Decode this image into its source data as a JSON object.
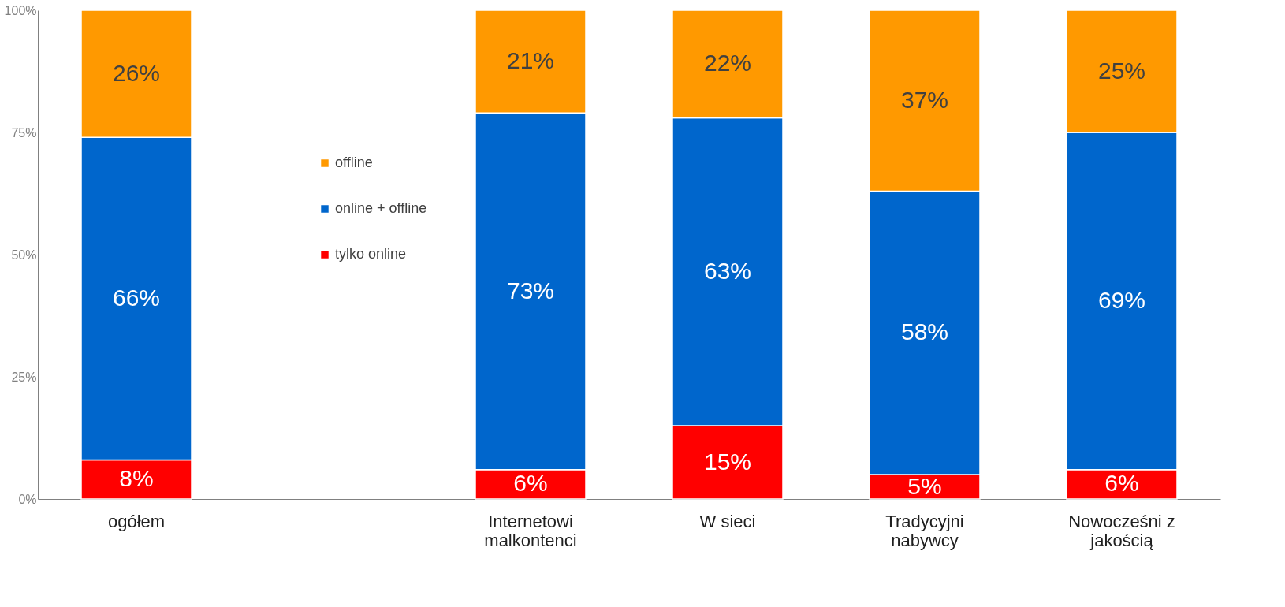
{
  "chart_data": {
    "type": "bar",
    "stacked": true,
    "categories": [
      "ogółem",
      null,
      "Internetowi malkontenci",
      "W sieci",
      "Tradycyjni nabywcy",
      "Nowocześni z jakością"
    ],
    "series": [
      {
        "name": "tylko online",
        "color": "#ff0000",
        "values": [
          8,
          null,
          6,
          15,
          5,
          6
        ],
        "value_labels": [
          "8%",
          null,
          "6%",
          "15%",
          "5%",
          "6%"
        ]
      },
      {
        "name": "online + offline",
        "color": "#0066cc",
        "values": [
          66,
          null,
          73,
          63,
          58,
          69
        ],
        "value_labels": [
          "66%",
          null,
          "73%",
          "63%",
          "58%",
          "69%"
        ]
      },
      {
        "name": "offline",
        "color": "#ff9900",
        "values": [
          26,
          null,
          21,
          22,
          37,
          25
        ],
        "value_labels": [
          "26%",
          null,
          "21%",
          "22%",
          "37%",
          "25%"
        ]
      }
    ],
    "ylim": [
      0,
      100
    ],
    "yticks": [
      {
        "value": 0,
        "label": "0%"
      },
      {
        "value": 25,
        "label": "25%"
      },
      {
        "value": 50,
        "label": "50%"
      },
      {
        "value": 75,
        "label": "75%"
      },
      {
        "value": 100,
        "label": "100%"
      }
    ],
    "grid": false,
    "legend": "left"
  }
}
